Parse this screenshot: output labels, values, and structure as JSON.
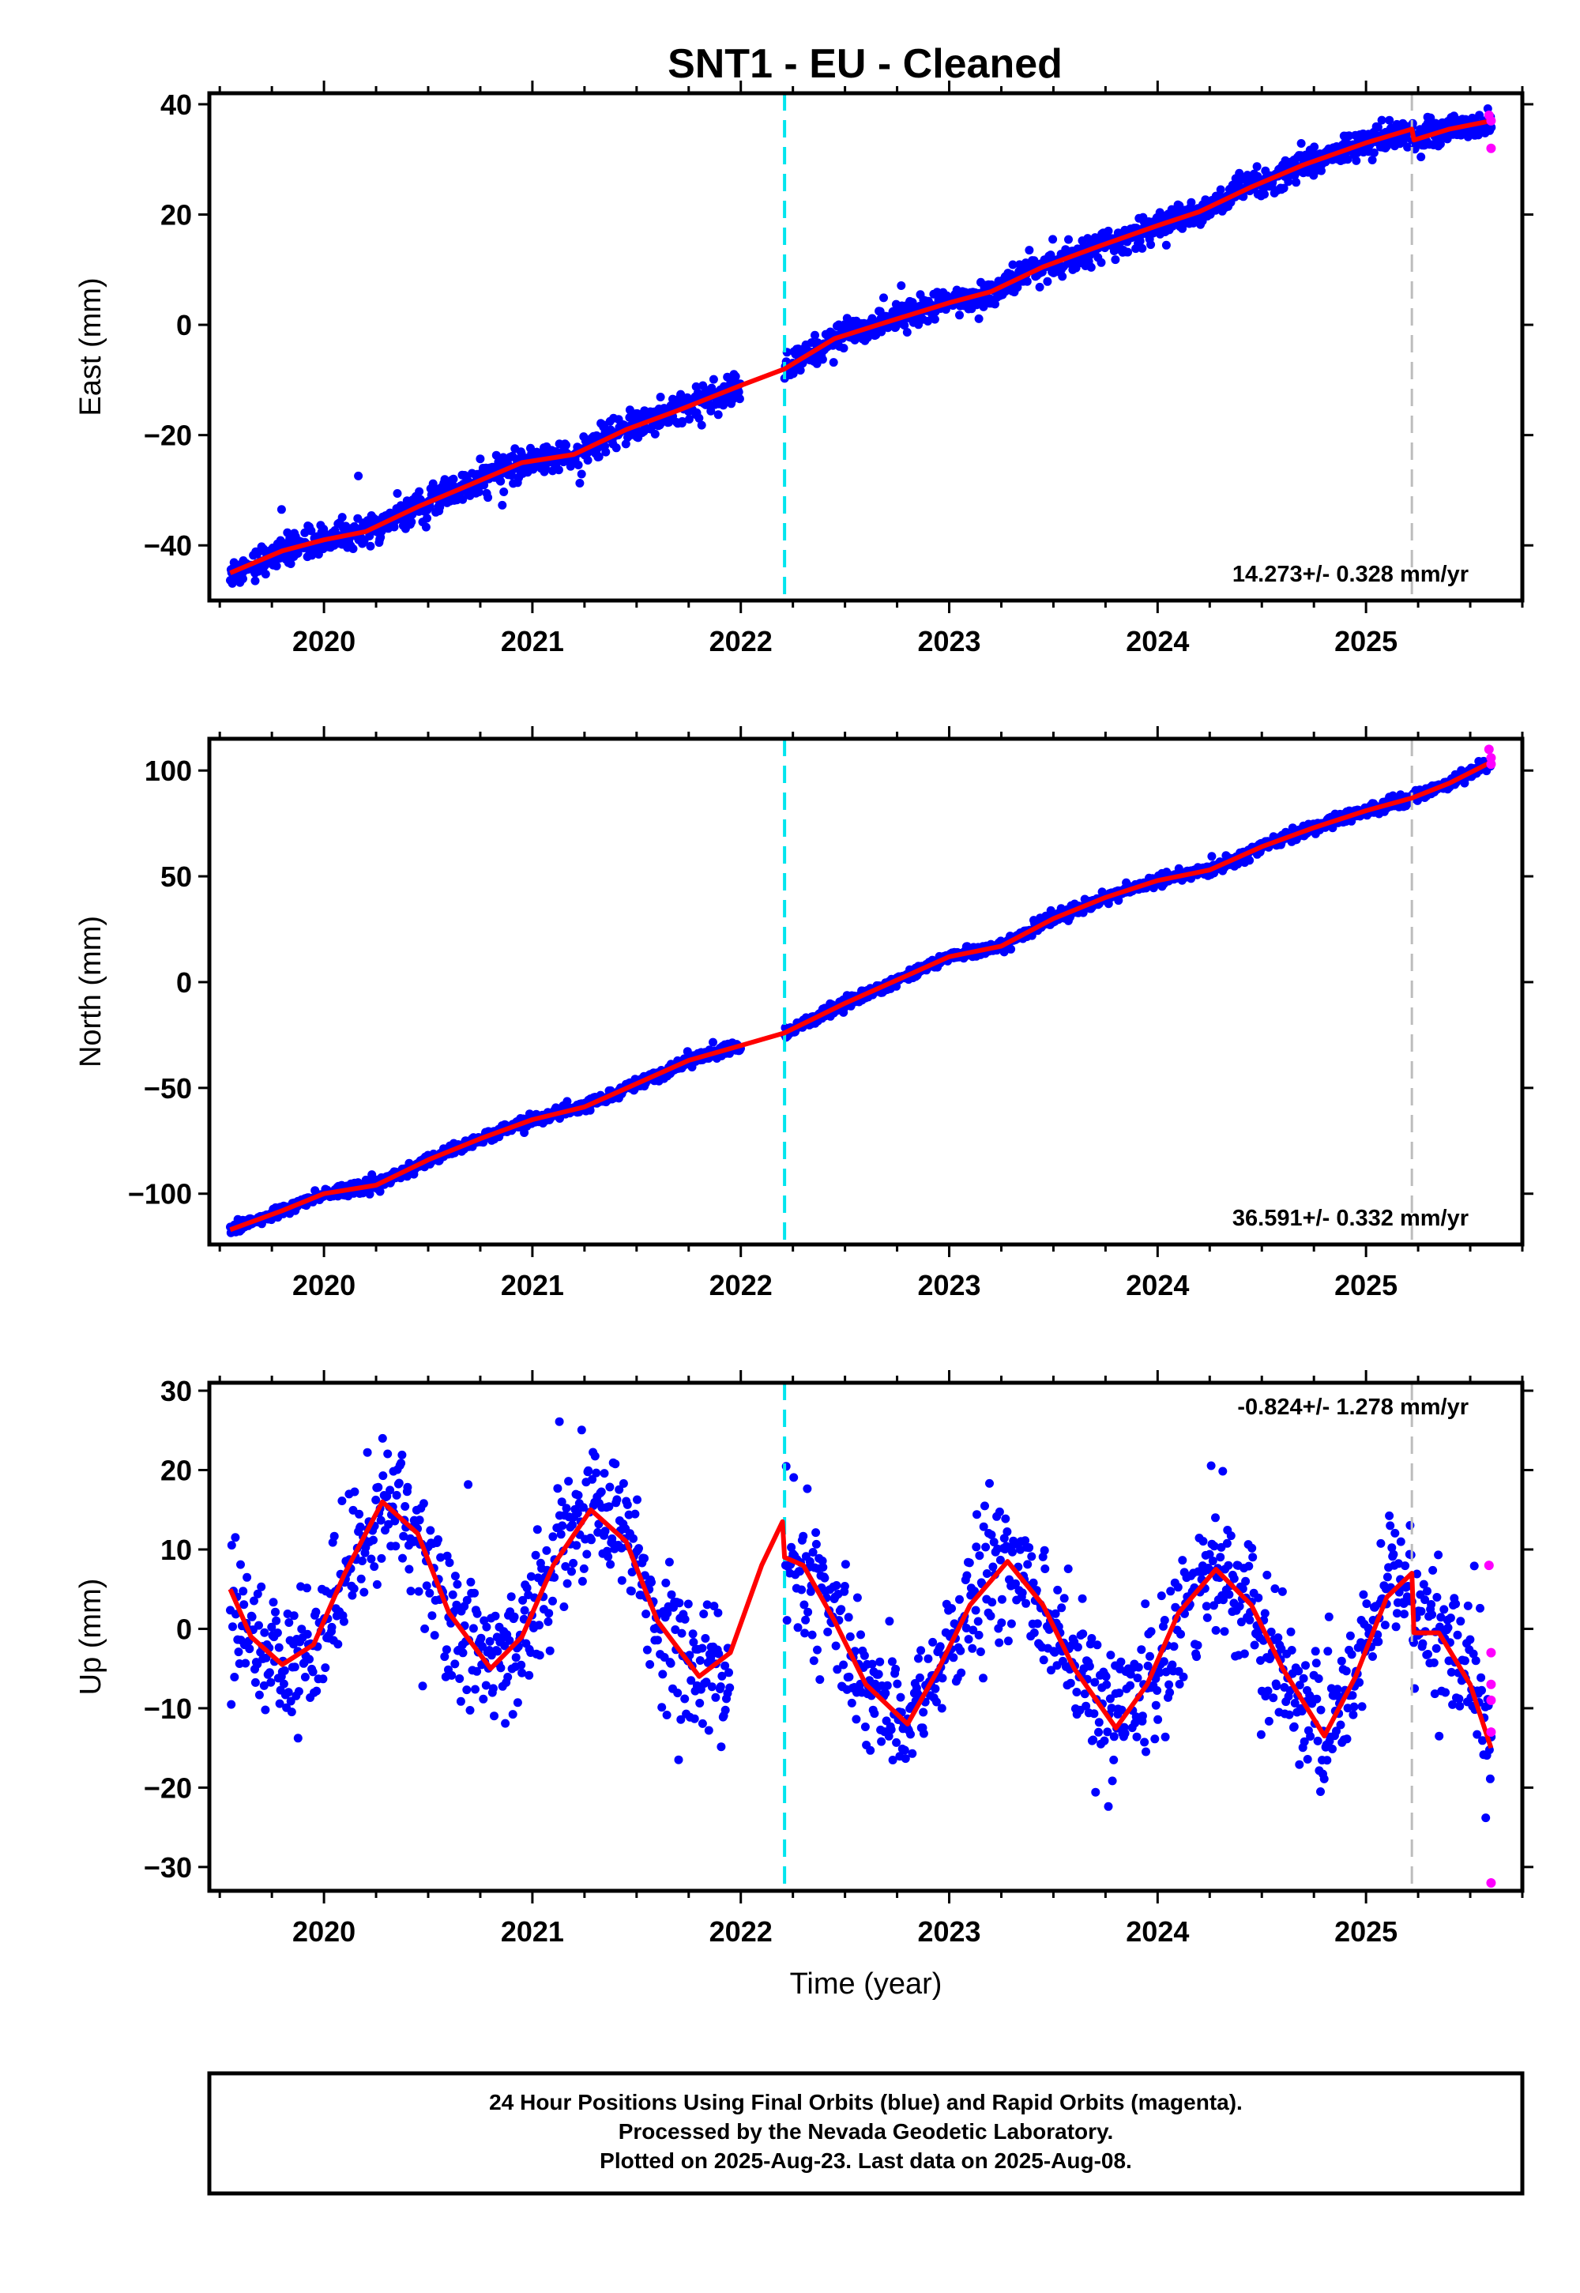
{
  "title": "SNT1  - EU - Cleaned",
  "colors": {
    "final_orbits": "#0000ff",
    "rapid_orbits": "#ff00ff",
    "model": "#ff0000",
    "equipment_change": "#00e5ee",
    "offset_marker": "#bdbdbd"
  },
  "footer": {
    "line1": "24 Hour Positions Using Final Orbits (blue) and Rapid Orbits (magenta).",
    "line2": "Processed by the Nevada Geodetic Laboratory.",
    "line3": "Plotted on 2025-Aug-23. Last data on 2025-Aug-08."
  },
  "chart_data": [
    {
      "type": "scatter",
      "ylabel": "East (mm)",
      "xlabel": "",
      "xlim": [
        2019.45,
        2025.75
      ],
      "ylim": [
        -50,
        42
      ],
      "yticks": [
        -40,
        -20,
        0,
        20,
        40
      ],
      "xticks": [
        2020,
        2021,
        2022,
        2023,
        2024,
        2025
      ],
      "rate_text": "14.273+/- 0.328 mm/yr",
      "rate_position": "bottom-right",
      "cyan_line_x": 2022.21,
      "gray_line_x": 2025.22,
      "data_start": 2019.55,
      "data_end": 2025.6,
      "gap": [
        2022.0,
        2022.21
      ],
      "noise": 1.3,
      "outlier_rate": 0.01,
      "outlier_scale": 3,
      "count": 1900,
      "model": [
        [
          2019.55,
          -45
        ],
        [
          2019.8,
          -41
        ],
        [
          2020.0,
          -39
        ],
        [
          2020.2,
          -37.5
        ],
        [
          2020.45,
          -33
        ],
        [
          2020.7,
          -29
        ],
        [
          2020.95,
          -25
        ],
        [
          2021.2,
          -23.5
        ],
        [
          2021.45,
          -19
        ],
        [
          2021.7,
          -15.5
        ],
        [
          2022.0,
          -11
        ],
        [
          2022.21,
          -8
        ],
        [
          2022.45,
          -2.5
        ],
        [
          2022.7,
          0.5
        ],
        [
          2023.0,
          4
        ],
        [
          2023.2,
          6
        ],
        [
          2023.45,
          10.5
        ],
        [
          2023.7,
          14
        ],
        [
          2024.0,
          18
        ],
        [
          2024.2,
          20.5
        ],
        [
          2024.45,
          25
        ],
        [
          2024.7,
          29
        ],
        [
          2025.0,
          33
        ],
        [
          2025.22,
          35.5
        ],
        [
          2025.23,
          33.5
        ],
        [
          2025.4,
          35.5
        ],
        [
          2025.6,
          37
        ]
      ],
      "rapid": [
        [
          2025.59,
          38
        ],
        [
          2025.6,
          37
        ],
        [
          2025.6,
          32
        ]
      ]
    },
    {
      "type": "scatter",
      "ylabel": "North (mm)",
      "xlabel": "",
      "xlim": [
        2019.45,
        2025.75
      ],
      "ylim": [
        -124,
        115
      ],
      "yticks": [
        -100,
        -50,
        0,
        50,
        100
      ],
      "xticks": [
        2020,
        2021,
        2022,
        2023,
        2024,
        2025
      ],
      "rate_text": "36.591+/- 0.332 mm/yr",
      "rate_position": "bottom-right",
      "cyan_line_x": 2022.21,
      "gray_line_x": 2025.22,
      "data_start": 2019.55,
      "data_end": 2025.6,
      "gap": [
        2022.0,
        2022.21
      ],
      "noise": 1.4,
      "outlier_rate": 0.0,
      "outlier_scale": 2,
      "count": 1900,
      "model": [
        [
          2019.55,
          -117
        ],
        [
          2019.8,
          -108
        ],
        [
          2020.0,
          -100
        ],
        [
          2020.25,
          -96
        ],
        [
          2020.5,
          -84
        ],
        [
          2020.75,
          -74
        ],
        [
          2021.0,
          -65
        ],
        [
          2021.25,
          -59
        ],
        [
          2021.5,
          -48
        ],
        [
          2021.75,
          -37
        ],
        [
          2022.0,
          -30
        ],
        [
          2022.21,
          -24
        ],
        [
          2022.5,
          -10
        ],
        [
          2022.75,
          1
        ],
        [
          2023.0,
          12
        ],
        [
          2023.25,
          17
        ],
        [
          2023.5,
          30
        ],
        [
          2023.75,
          40
        ],
        [
          2024.0,
          48
        ],
        [
          2024.25,
          53
        ],
        [
          2024.5,
          64
        ],
        [
          2024.75,
          73
        ],
        [
          2025.0,
          81
        ],
        [
          2025.22,
          87
        ],
        [
          2025.4,
          94
        ],
        [
          2025.6,
          104
        ]
      ],
      "rapid": [
        [
          2025.59,
          110
        ],
        [
          2025.6,
          106
        ],
        [
          2025.6,
          103
        ]
      ]
    },
    {
      "type": "scatter",
      "ylabel": "Up (mm)",
      "xlabel": "Time (year)",
      "xlim": [
        2019.45,
        2025.75
      ],
      "ylim": [
        -33,
        31
      ],
      "yticks": [
        -30,
        -20,
        -10,
        0,
        10,
        20,
        30
      ],
      "xticks": [
        2020,
        2021,
        2022,
        2023,
        2024,
        2025
      ],
      "rate_text": "-0.824+/- 1.278 mm/yr",
      "rate_position": "top-right",
      "cyan_line_x": 2022.21,
      "gray_line_x": 2025.22,
      "data_start": 2019.55,
      "data_end": 2025.6,
      "gap": [
        2021.95,
        2022.21
      ],
      "noise": 4.2,
      "outlier_rate": 0.02,
      "outlier_scale": 2.5,
      "count": 1500,
      "model": [
        [
          2019.55,
          5
        ],
        [
          2019.65,
          -1
        ],
        [
          2019.8,
          -4.5
        ],
        [
          2019.95,
          -2
        ],
        [
          2020.1,
          7
        ],
        [
          2020.28,
          16
        ],
        [
          2020.45,
          12
        ],
        [
          2020.6,
          2
        ],
        [
          2020.8,
          -5
        ],
        [
          2020.95,
          -1
        ],
        [
          2021.1,
          8
        ],
        [
          2021.28,
          15
        ],
        [
          2021.45,
          11
        ],
        [
          2021.6,
          1
        ],
        [
          2021.8,
          -6
        ],
        [
          2021.95,
          -3
        ],
        [
          2022.1,
          8
        ],
        [
          2022.2,
          13.5
        ],
        [
          2022.21,
          9
        ],
        [
          2022.3,
          8
        ],
        [
          2022.45,
          1
        ],
        [
          2022.6,
          -7
        ],
        [
          2022.8,
          -12
        ],
        [
          2022.95,
          -5
        ],
        [
          2023.1,
          3
        ],
        [
          2023.28,
          8.5
        ],
        [
          2023.45,
          3
        ],
        [
          2023.6,
          -5
        ],
        [
          2023.8,
          -12.5
        ],
        [
          2023.95,
          -7
        ],
        [
          2024.1,
          2
        ],
        [
          2024.28,
          7.5
        ],
        [
          2024.45,
          3
        ],
        [
          2024.6,
          -5
        ],
        [
          2024.8,
          -13.5
        ],
        [
          2024.95,
          -6
        ],
        [
          2025.1,
          4
        ],
        [
          2025.22,
          7
        ],
        [
          2025.23,
          -0.5
        ],
        [
          2025.35,
          -0.5
        ],
        [
          2025.5,
          -7
        ],
        [
          2025.6,
          -15
        ]
      ],
      "rapid": [
        [
          2025.59,
          8
        ],
        [
          2025.6,
          -3
        ],
        [
          2025.6,
          -7
        ],
        [
          2025.6,
          -9
        ],
        [
          2025.6,
          -13
        ],
        [
          2025.6,
          -32
        ]
      ]
    }
  ]
}
